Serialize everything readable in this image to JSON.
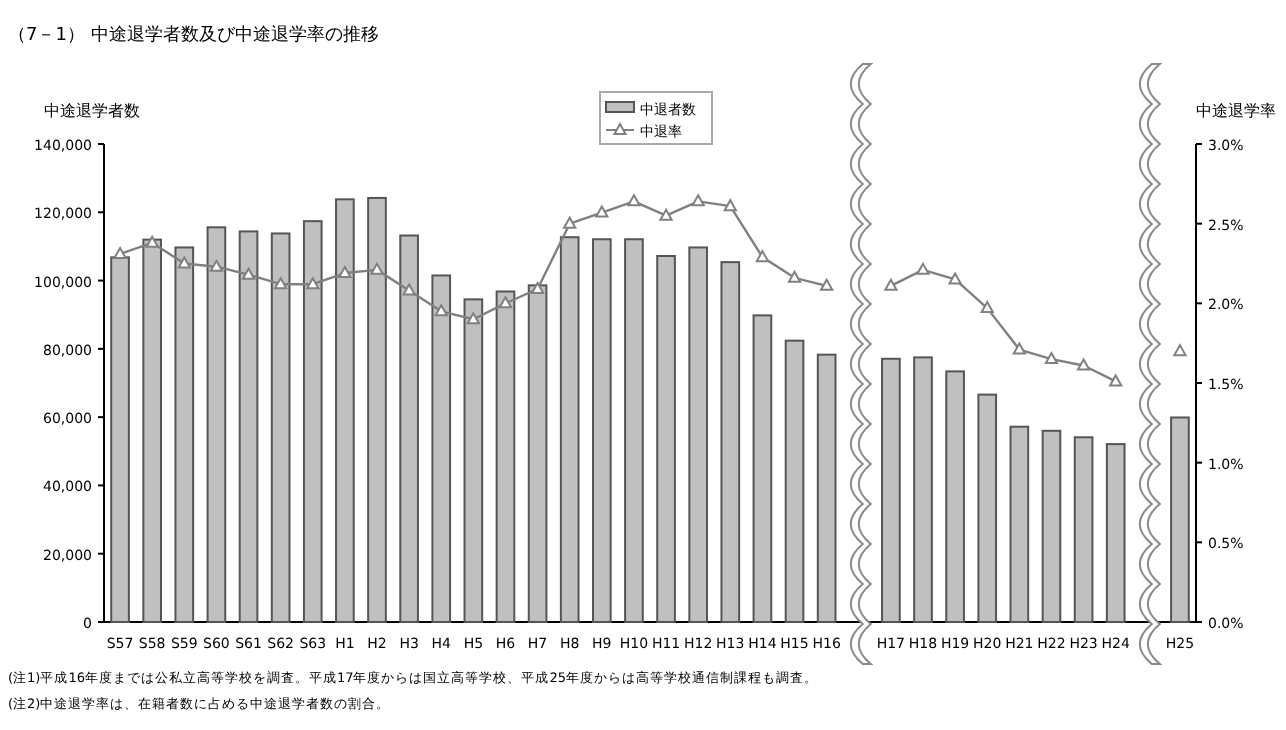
{
  "chart_data": {
    "type": "bar",
    "title": "（7－1） 中途退学者数及び中途退学率の推移",
    "ylabel": "中途退学者数",
    "y2label": "中途退学率",
    "categories": [
      "S57",
      "S58",
      "S59",
      "S60",
      "S61",
      "S62",
      "S63",
      "H1",
      "H2",
      "H3",
      "H4",
      "H5",
      "H6",
      "H7",
      "H8",
      "H9",
      "H10",
      "H11",
      "H12",
      "H13",
      "H14",
      "H15",
      "H16",
      null,
      "H17",
      "H18",
      "H19",
      "H20",
      "H21",
      "H22",
      "H23",
      "H24",
      null,
      "H25"
    ],
    "series": [
      {
        "name": "中退者数",
        "color": "#c0c0c0",
        "values": [
          106800,
          112000,
          109700,
          115600,
          114400,
          113800,
          117400,
          123800,
          124200,
          113200,
          101500,
          94500,
          96800,
          98600,
          112700,
          112100,
          112100,
          107200,
          109700,
          105400,
          89800,
          82400,
          78300,
          null,
          77100,
          77500,
          73400,
          66600,
          57200,
          56000,
          54100,
          52100,
          null,
          59900
        ]
      },
      {
        "name": "中退率",
        "type": "line",
        "axis": "y2",
        "color": "#808080",
        "marker": "triangle",
        "line_style": "solid",
        "values": [
          2.31,
          2.38,
          2.25,
          2.23,
          2.18,
          2.12,
          2.12,
          2.19,
          2.21,
          2.08,
          1.95,
          1.9,
          2.0,
          2.09,
          2.5,
          2.57,
          2.64,
          2.55,
          2.64,
          2.61,
          2.29,
          2.16,
          2.11,
          null,
          2.11,
          2.21,
          2.15,
          1.97,
          1.71,
          1.65,
          1.61,
          1.51,
          null,
          1.7
        ]
      }
    ],
    "ylim": [
      0,
      140000
    ],
    "yticks": [
      {
        "value": 0,
        "label": "0"
      },
      {
        "value": 20000,
        "label": "20,000"
      },
      {
        "value": 40000,
        "label": "40,000"
      },
      {
        "value": 60000,
        "label": "60,000"
      },
      {
        "value": 80000,
        "label": "80,000"
      },
      {
        "value": 100000,
        "label": "100,000"
      },
      {
        "value": 120000,
        "label": "120,000"
      },
      {
        "value": 140000,
        "label": "140,000"
      }
    ],
    "y2lim": [
      0,
      3
    ],
    "y2ticks": [
      {
        "value": 0,
        "label": "0.0%"
      },
      {
        "value": 0.5,
        "label": "0.5%"
      },
      {
        "value": 1,
        "label": "1.0%"
      },
      {
        "value": 1.5,
        "label": "1.5%"
      },
      {
        "value": 2,
        "label": "2.0%"
      },
      {
        "value": 2.5,
        "label": "2.5%"
      },
      {
        "value": 3,
        "label": "3.0%"
      }
    ],
    "grid": false,
    "legend": "top",
    "annotations": [
      "(注1)平成16年度までは公私立高等学校を調査。平成17年度からは国立高等学校、平成25年度からは高等学校通信制課程も調査。",
      "(注2)中途退学率は、在籍者数に占める中途退学者数の割合。"
    ]
  }
}
